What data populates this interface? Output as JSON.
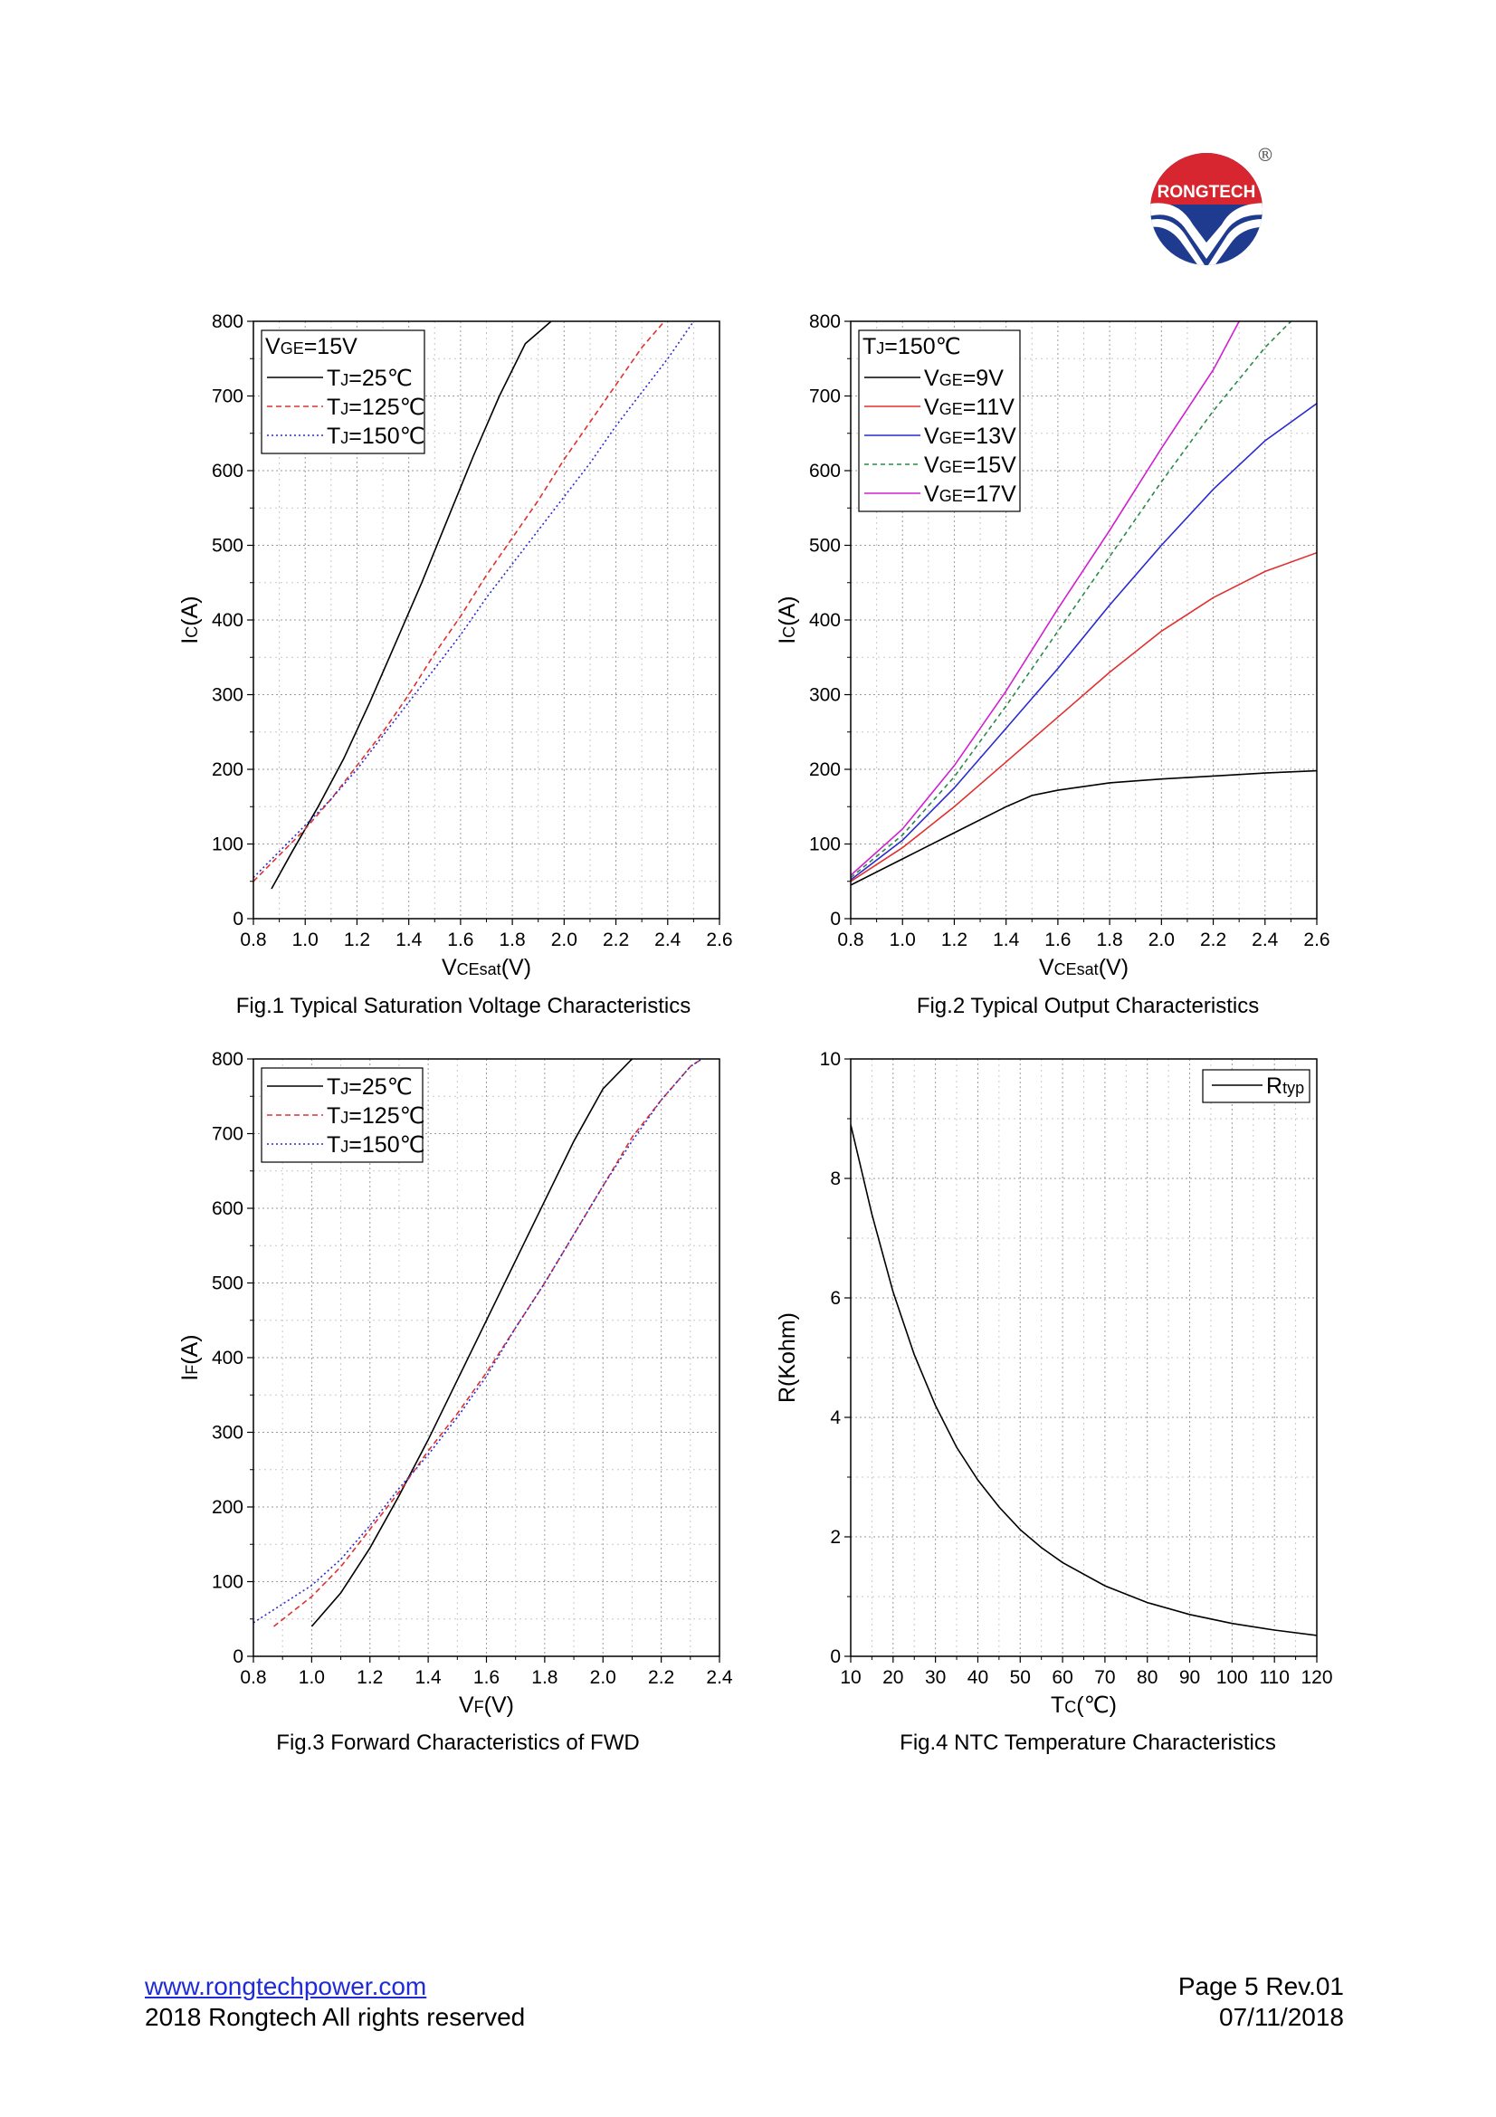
{
  "logo": {
    "text": "RONGTECH",
    "registered": "®",
    "color_red": "#d7262f",
    "color_blue": "#1f3b8f"
  },
  "captions": {
    "fig1": "Fig.1 Typical Saturation Voltage Characteristics",
    "fig2": "Fig.2 Typical Output Characteristics",
    "fig3": "Fig.3 Forward Characteristics of FWD",
    "fig4": "Fig.4 NTC Temperature Characteristics"
  },
  "footer": {
    "website": "www.rongtechpower.com",
    "copyright": "2018 Rongtech All rights reserved",
    "page": "Page 5  Rev.01",
    "date": "07/11/2018"
  },
  "chart_data": [
    {
      "id": "fig1",
      "type": "line",
      "title": "",
      "xlabel": {
        "main": "V",
        "sub": "CEsat",
        "suffix": "(V)"
      },
      "ylabel": {
        "main": "I",
        "sub": "C",
        "suffix": "(A)"
      },
      "xlim": [
        0.8,
        2.6
      ],
      "ylim": [
        0,
        800
      ],
      "xticks": [
        0.8,
        1.0,
        1.2,
        1.4,
        1.6,
        1.8,
        2.0,
        2.2,
        2.4,
        2.6
      ],
      "xtick_labels": [
        "0.8",
        "1.0",
        "1.2",
        "1.4",
        "1.6",
        "1.8",
        "2.0",
        "2.2",
        "2.4",
        "2.6"
      ],
      "yticks": [
        0,
        100,
        200,
        300,
        400,
        500,
        600,
        700,
        800
      ],
      "ytick_labels": [
        "0",
        "100",
        "200",
        "300",
        "400",
        "500",
        "600",
        "700",
        "800"
      ],
      "grid": true,
      "legend": {
        "position": "top-left",
        "header": {
          "main": "V",
          "sub": "GE",
          "suffix": "=15V"
        }
      },
      "series": [
        {
          "name": "TJ=25℃",
          "label": {
            "main": "T",
            "sub": "J",
            "suffix": "=25℃"
          },
          "color": "#000000",
          "dash": "",
          "x": [
            0.87,
            0.95,
            1.05,
            1.15,
            1.25,
            1.35,
            1.45,
            1.55,
            1.65,
            1.75,
            1.85,
            1.95
          ],
          "y": [
            40,
            90,
            150,
            215,
            290,
            370,
            450,
            535,
            620,
            700,
            770,
            800
          ]
        },
        {
          "name": "TJ=125℃",
          "label": {
            "main": "T",
            "sub": "J",
            "suffix": "=125℃"
          },
          "color": "#e03030",
          "dash": "6,4",
          "x": [
            0.8,
            0.9,
            1.0,
            1.1,
            1.2,
            1.3,
            1.4,
            1.5,
            1.6,
            1.7,
            1.8,
            1.9,
            2.0,
            2.1,
            2.2,
            2.3,
            2.4
          ],
          "y": [
            50,
            85,
            120,
            160,
            205,
            250,
            300,
            355,
            405,
            460,
            510,
            560,
            615,
            665,
            715,
            765,
            805
          ]
        },
        {
          "name": "TJ=150℃",
          "label": {
            "main": "T",
            "sub": "J",
            "suffix": "=150℃"
          },
          "color": "#2a2ad0",
          "dash": "2,3",
          "x": [
            0.8,
            0.9,
            1.0,
            1.1,
            1.2,
            1.3,
            1.4,
            1.5,
            1.6,
            1.7,
            1.8,
            1.9,
            2.0,
            2.1,
            2.2,
            2.3,
            2.4,
            2.5
          ],
          "y": [
            55,
            90,
            125,
            160,
            200,
            245,
            290,
            335,
            380,
            430,
            475,
            520,
            565,
            610,
            660,
            705,
            750,
            800
          ]
        }
      ]
    },
    {
      "id": "fig2",
      "type": "line",
      "title": "",
      "xlabel": {
        "main": "V",
        "sub": "CEsat",
        "suffix": "(V)"
      },
      "ylabel": {
        "main": "I",
        "sub": "C",
        "suffix": "(A)"
      },
      "xlim": [
        0.8,
        2.6
      ],
      "ylim": [
        0,
        800
      ],
      "xticks": [
        0.8,
        1.0,
        1.2,
        1.4,
        1.6,
        1.8,
        2.0,
        2.2,
        2.4,
        2.6
      ],
      "xtick_labels": [
        "0.8",
        "1.0",
        "1.2",
        "1.4",
        "1.6",
        "1.8",
        "2.0",
        "2.2",
        "2.4",
        "2.6"
      ],
      "yticks": [
        0,
        100,
        200,
        300,
        400,
        500,
        600,
        700,
        800
      ],
      "ytick_labels": [
        "0",
        "100",
        "200",
        "300",
        "400",
        "500",
        "600",
        "700",
        "800"
      ],
      "grid": true,
      "legend": {
        "position": "top-left",
        "header": {
          "main": "T",
          "sub": "J",
          "suffix": "=150℃"
        }
      },
      "series": [
        {
          "name": "VGE=9V",
          "label": {
            "main": "V",
            "sub": "GE",
            "suffix": "=9V"
          },
          "color": "#000000",
          "dash": "",
          "x": [
            0.8,
            1.0,
            1.2,
            1.4,
            1.5,
            1.6,
            1.8,
            2.0,
            2.2,
            2.4,
            2.6
          ],
          "y": [
            45,
            80,
            115,
            150,
            165,
            172,
            182,
            187,
            191,
            195,
            198
          ]
        },
        {
          "name": "VGE=11V",
          "label": {
            "main": "V",
            "sub": "GE",
            "suffix": "=11V"
          },
          "color": "#e03030",
          "dash": "",
          "x": [
            0.8,
            1.0,
            1.2,
            1.4,
            1.6,
            1.8,
            2.0,
            2.2,
            2.4,
            2.6
          ],
          "y": [
            50,
            95,
            150,
            210,
            270,
            330,
            385,
            430,
            465,
            490
          ]
        },
        {
          "name": "VGE=13V",
          "label": {
            "main": "V",
            "sub": "GE",
            "suffix": "=13V"
          },
          "color": "#2a2ad0",
          "dash": "",
          "x": [
            0.8,
            1.0,
            1.2,
            1.4,
            1.6,
            1.8,
            2.0,
            2.2,
            2.4,
            2.6
          ],
          "y": [
            52,
            105,
            175,
            255,
            335,
            420,
            500,
            575,
            640,
            690
          ]
        },
        {
          "name": "VGE=15V",
          "label": {
            "main": "V",
            "sub": "GE",
            "suffix": "=15V"
          },
          "color": "#2a8a4a",
          "dash": "5,4",
          "x": [
            0.8,
            1.0,
            1.2,
            1.4,
            1.6,
            1.8,
            2.0,
            2.2,
            2.4,
            2.5
          ],
          "y": [
            55,
            112,
            190,
            285,
            385,
            485,
            585,
            680,
            765,
            800
          ]
        },
        {
          "name": "VGE=17V",
          "label": {
            "main": "V",
            "sub": "GE",
            "suffix": "=17V"
          },
          "color": "#d020d0",
          "dash": "",
          "x": [
            0.8,
            1.0,
            1.2,
            1.4,
            1.6,
            1.8,
            2.0,
            2.2,
            2.3
          ],
          "y": [
            58,
            120,
            205,
            305,
            415,
            520,
            630,
            735,
            800
          ]
        }
      ]
    },
    {
      "id": "fig3",
      "type": "line",
      "title": "",
      "xlabel": {
        "main": "V",
        "sub": "F",
        "suffix": "(V)"
      },
      "ylabel": {
        "main": "I",
        "sub": "F",
        "suffix": "(A)"
      },
      "xlim": [
        0.8,
        2.4
      ],
      "ylim": [
        0,
        800
      ],
      "xticks": [
        0.8,
        1.0,
        1.2,
        1.4,
        1.6,
        1.8,
        2.0,
        2.2,
        2.4
      ],
      "xtick_labels": [
        "0.8",
        "1.0",
        "1.2",
        "1.4",
        "1.6",
        "1.8",
        "2.0",
        "2.2",
        "2.4"
      ],
      "yticks": [
        0,
        100,
        200,
        300,
        400,
        500,
        600,
        700,
        800
      ],
      "ytick_labels": [
        "0",
        "100",
        "200",
        "300",
        "400",
        "500",
        "600",
        "700",
        "800"
      ],
      "grid": true,
      "legend": {
        "position": "top-left",
        "header": null
      },
      "series": [
        {
          "name": "TJ=25℃",
          "label": {
            "main": "T",
            "sub": "J",
            "suffix": "=25℃"
          },
          "color": "#000000",
          "dash": "",
          "x": [
            1.0,
            1.1,
            1.2,
            1.3,
            1.4,
            1.5,
            1.6,
            1.7,
            1.8,
            1.9,
            2.0,
            2.1
          ],
          "y": [
            40,
            85,
            145,
            215,
            290,
            370,
            450,
            530,
            610,
            690,
            760,
            800
          ]
        },
        {
          "name": "TJ=125℃",
          "label": {
            "main": "T",
            "sub": "J",
            "suffix": "=125℃"
          },
          "color": "#e03030",
          "dash": "6,4",
          "x": [
            0.87,
            1.0,
            1.1,
            1.2,
            1.3,
            1.4,
            1.5,
            1.6,
            1.7,
            1.8,
            1.9,
            2.0,
            2.1,
            2.2,
            2.3,
            2.34
          ],
          "y": [
            40,
            80,
            120,
            170,
            220,
            275,
            325,
            380,
            440,
            500,
            565,
            630,
            695,
            745,
            790,
            800
          ]
        },
        {
          "name": "TJ=150℃",
          "label": {
            "main": "T",
            "sub": "J",
            "suffix": "=150℃"
          },
          "color": "#2a2ad0",
          "dash": "2,3",
          "x": [
            0.8,
            0.9,
            1.0,
            1.1,
            1.2,
            1.3,
            1.4,
            1.5,
            1.6,
            1.7,
            1.8,
            1.9,
            2.0,
            2.1,
            2.2,
            2.3,
            2.34
          ],
          "y": [
            45,
            70,
            95,
            130,
            175,
            225,
            270,
            320,
            375,
            440,
            500,
            565,
            630,
            690,
            745,
            790,
            800
          ]
        }
      ]
    },
    {
      "id": "fig4",
      "type": "line",
      "title": "",
      "xlabel": {
        "main": "T",
        "sub": "C",
        "suffix": "(℃)"
      },
      "ylabel": {
        "main": "R(Kohm)",
        "sub": "",
        "suffix": ""
      },
      "xlim": [
        10,
        120
      ],
      "ylim": [
        0,
        10
      ],
      "xticks": [
        10,
        20,
        30,
        40,
        50,
        60,
        70,
        80,
        90,
        100,
        110,
        120
      ],
      "xtick_labels": [
        "10",
        "20",
        "30",
        "40",
        "50",
        "60",
        "70",
        "80",
        "90",
        "100",
        "110",
        "120"
      ],
      "yticks": [
        0,
        2,
        4,
        6,
        8,
        10
      ],
      "ytick_labels": [
        "0",
        "2",
        "4",
        "6",
        "8",
        "10"
      ],
      "grid": true,
      "legend": {
        "position": "top-right",
        "header": null
      },
      "series": [
        {
          "name": "Rtyp",
          "label": {
            "main": "R",
            "sub": "typ",
            "suffix": ""
          },
          "color": "#000000",
          "dash": "",
          "x": [
            10,
            15,
            20,
            25,
            30,
            35,
            40,
            45,
            50,
            55,
            60,
            70,
            80,
            90,
            100,
            110,
            120
          ],
          "y": [
            8.9,
            7.4,
            6.1,
            5.05,
            4.2,
            3.5,
            2.95,
            2.5,
            2.12,
            1.82,
            1.57,
            1.18,
            0.9,
            0.7,
            0.55,
            0.44,
            0.35
          ]
        }
      ]
    }
  ]
}
